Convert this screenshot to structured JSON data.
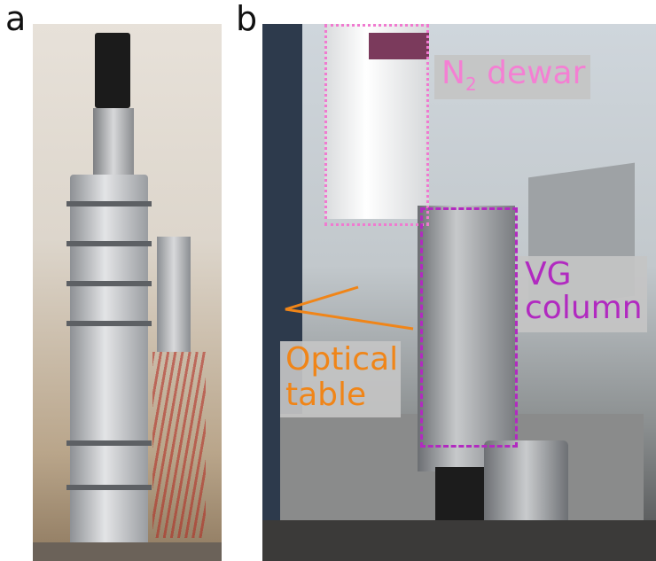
{
  "panels": {
    "a": {
      "letter": "a"
    },
    "b": {
      "letter": "b"
    }
  },
  "annotations": {
    "dewar": {
      "text": "N",
      "subscript": "2",
      "suffix": " dewar",
      "color": "#f47fd3"
    },
    "vg_column": {
      "line1": "VG",
      "line2": "column",
      "color": "#b12ac0"
    },
    "optical_table": {
      "line1": "Optical",
      "line2": "table",
      "color": "#f08518"
    }
  }
}
